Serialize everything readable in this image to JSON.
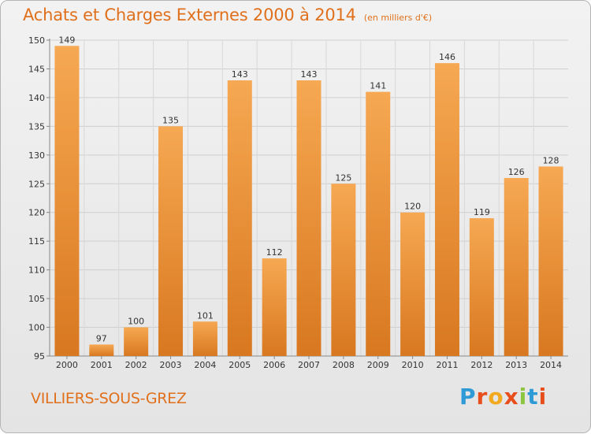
{
  "header": {
    "title": "Achats et Charges Externes 2000 à 2014",
    "unit": "(en milliers d'€)"
  },
  "footer": {
    "commune": "VILLIERS-SOUS-GREZ",
    "logo_text": "Proxiti"
  },
  "colors": {
    "accent": "#e0701c",
    "bar_top": "#f6a852",
    "bar_bottom": "#d87820",
    "logo": [
      "#2e9bd6",
      "#e84e1c",
      "#f2a91e",
      "#e84e1c",
      "#8cc63f",
      "#2e9bd6",
      "#e84e1c"
    ]
  },
  "chart_data": {
    "type": "bar",
    "title": "Achats et Charges Externes 2000 à 2014",
    "subtitle": "(en milliers d'€)",
    "categories": [
      "2000",
      "2001",
      "2002",
      "2003",
      "2004",
      "2005",
      "2006",
      "2007",
      "2008",
      "2009",
      "2010",
      "2011",
      "2012",
      "2013",
      "2014"
    ],
    "values": [
      149,
      97,
      100,
      135,
      101,
      143,
      112,
      143,
      125,
      141,
      120,
      146,
      119,
      126,
      128
    ],
    "ylim": [
      95,
      150
    ],
    "yticks": [
      95,
      100,
      105,
      110,
      115,
      120,
      125,
      130,
      135,
      140,
      145,
      150
    ],
    "grid": true,
    "data_labels": true,
    "xlabel": "",
    "ylabel": ""
  }
}
